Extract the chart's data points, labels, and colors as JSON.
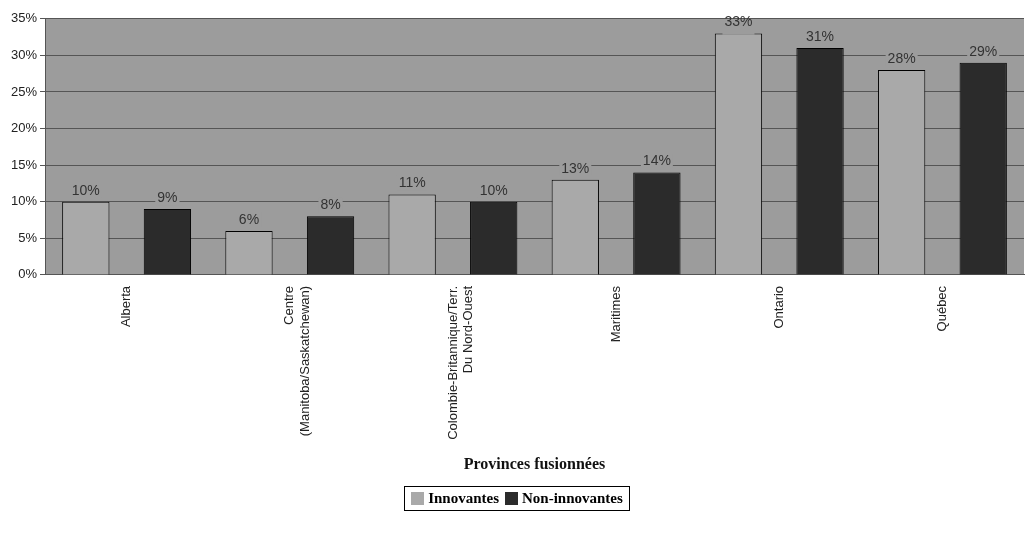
{
  "chart_data": {
    "type": "bar",
    "xlabel": "Provinces fusionnées",
    "categories": [
      "Alberta",
      "Centre\n(Manitoba/Saskatchewan)",
      "Colombie-Britannique/Terr.\nDu Nord-Ouest",
      "Maritimes",
      "Ontario",
      "Québec"
    ],
    "series": [
      {
        "name": "Innovantes",
        "color": "#a9a9a9",
        "values": [
          10,
          6,
          11,
          13,
          33,
          28
        ],
        "value_labels": [
          "10%",
          "6%",
          "11%",
          "13%",
          "33%",
          "28%"
        ]
      },
      {
        "name": "Non-innovantes",
        "color": "#2b2b2b",
        "values": [
          9,
          8,
          10,
          14,
          31,
          29
        ],
        "value_labels": [
          "9%",
          "8%",
          "10%",
          "14%",
          "31%",
          "29%"
        ]
      }
    ],
    "ylim": [
      0,
      35
    ],
    "yticks": [
      {
        "value": 0,
        "label": "0%"
      },
      {
        "value": 5,
        "label": "5%"
      },
      {
        "value": 10,
        "label": "10%"
      },
      {
        "value": 15,
        "label": "15%"
      },
      {
        "value": 20,
        "label": "20%"
      },
      {
        "value": 25,
        "label": "25%"
      },
      {
        "value": 30,
        "label": "30%"
      },
      {
        "value": 35,
        "label": "35%"
      }
    ],
    "grid": "y",
    "legend": "bottom"
  }
}
